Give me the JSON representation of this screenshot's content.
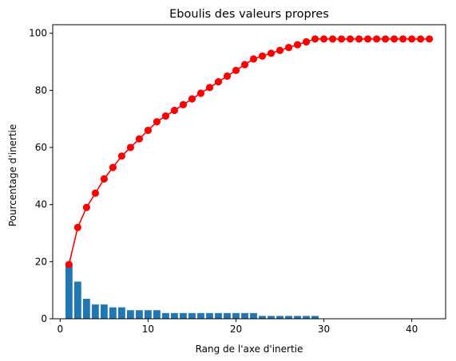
{
  "chart_data": {
    "type": "bar+line",
    "title": "Eboulis des valeurs propres",
    "xlabel": "Rang de l'axe d'inertie",
    "ylabel": "Pourcentage d'inertie",
    "xlim": [
      -0.85,
      43.85
    ],
    "ylim": [
      0,
      103
    ],
    "xticks": [
      0,
      10,
      20,
      30,
      40
    ],
    "yticks": [
      0,
      20,
      40,
      60,
      80,
      100
    ],
    "grid": false,
    "x": [
      1,
      2,
      3,
      4,
      5,
      6,
      7,
      8,
      9,
      10,
      11,
      12,
      13,
      14,
      15,
      16,
      17,
      18,
      19,
      20,
      21,
      22,
      23,
      24,
      25,
      26,
      27,
      28,
      29,
      30,
      31,
      32,
      33,
      34,
      35,
      36,
      37,
      38,
      39,
      40,
      41,
      42
    ],
    "series": [
      {
        "kind": "bar",
        "color": "#1f77b4",
        "values": [
          19,
          13,
          7,
          5,
          5,
          4,
          4,
          3,
          3,
          3,
          3,
          2,
          2,
          2,
          2,
          2,
          2,
          2,
          2,
          2,
          2,
          2,
          1,
          1,
          1,
          1,
          1,
          1,
          1,
          0,
          0,
          0,
          0,
          0,
          0,
          0,
          0,
          0,
          0,
          0,
          0,
          0
        ]
      },
      {
        "kind": "line",
        "color": "#ff0000",
        "marker": "circle",
        "values": [
          19,
          32,
          39,
          44,
          49,
          53,
          57,
          60,
          63,
          66,
          69,
          71,
          73,
          75,
          77,
          79,
          81,
          83,
          85,
          87,
          89,
          91,
          92,
          93,
          94,
          95,
          96,
          97,
          98,
          98,
          98,
          98,
          98,
          98,
          98,
          98,
          98,
          98,
          98,
          98,
          98,
          98
        ]
      }
    ]
  }
}
